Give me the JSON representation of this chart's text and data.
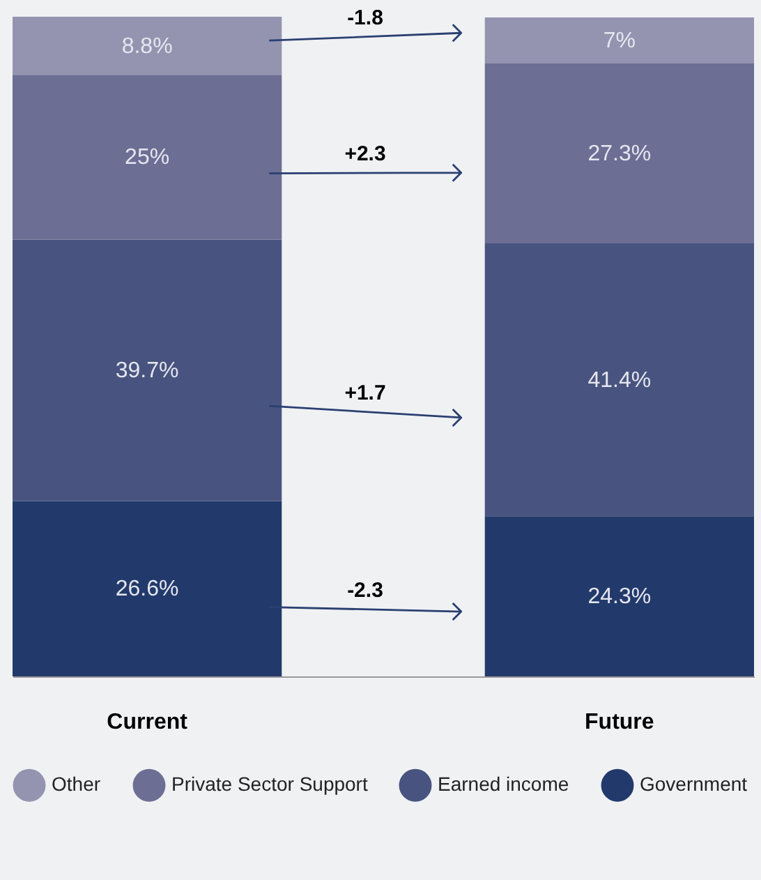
{
  "chart_data": {
    "type": "bar",
    "stacked": true,
    "categories": [
      "Current",
      "Future"
    ],
    "series": [
      {
        "name": "Government",
        "color": "#223a6b",
        "values": [
          26.6,
          24.3
        ],
        "value_labels": [
          "26.6%",
          "24.3%"
        ]
      },
      {
        "name": "Earned income",
        "color": "#48547f",
        "values": [
          39.7,
          41.4
        ],
        "value_labels": [
          "39.7%",
          "41.4%"
        ]
      },
      {
        "name": "Private Sector Support",
        "color": "#6c6e94",
        "values": [
          25,
          27.3
        ],
        "value_labels": [
          "25%",
          "27.3%"
        ]
      },
      {
        "name": "Other",
        "color": "#9494b0",
        "values": [
          8.8,
          7
        ],
        "value_labels": [
          "8.8%",
          "7%"
        ]
      }
    ],
    "annotations": [
      "-1.8",
      "+2.3",
      "+1.7",
      "-2.3"
    ],
    "legend": "bottom"
  }
}
